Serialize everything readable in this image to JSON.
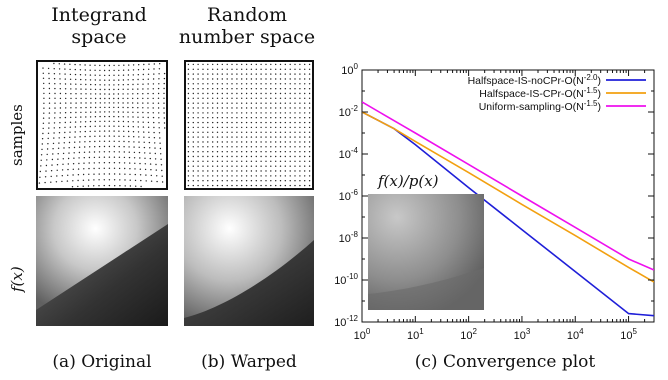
{
  "columns": {
    "integrand_title": [
      "Integrand",
      "space"
    ],
    "random_title": [
      "Random",
      "number space"
    ]
  },
  "row_labels": {
    "samples": "samples",
    "fx": "f(x)"
  },
  "captions": {
    "a": "(a) Original",
    "b": "(b) Warped",
    "c": "(c) Convergence plot"
  },
  "inset_label": "f(x)/p(x)",
  "colors": {
    "halfspace_nocpr": "#1f1fd8",
    "halfspace_cpr": "#f2a010",
    "uniform": "#ee10ee"
  },
  "chart_data": {
    "type": "line",
    "x_scale": "log",
    "y_scale": "log",
    "xlim": [
      1,
      300000
    ],
    "ylim": [
      1e-12,
      1
    ],
    "x_ticks": [
      1,
      10,
      100,
      1000,
      10000,
      100000
    ],
    "x_tick_labels": [
      "10^0",
      "10^1",
      "10^2",
      "10^3",
      "10^4",
      "10^5"
    ],
    "y_ticks": [
      1,
      0.01,
      0.0001,
      1e-06,
      1e-08,
      1e-10,
      1e-12
    ],
    "y_tick_labels": [
      "10^0",
      "10^-2",
      "10^-4",
      "10^-6",
      "10^-8",
      "10^-10",
      "10^-12"
    ],
    "legend_position": "top-right",
    "series": [
      {
        "name": "Halfspace-IS-noCPr-O(N^-2.0)",
        "color": "#1f1fd8",
        "x": [
          1,
          4,
          10,
          100,
          1000,
          10000,
          100000,
          300000
        ],
        "y": [
          0.01,
          0.0016,
          0.00028,
          2.5e-06,
          2.5e-08,
          2.5e-10,
          2.5e-12,
          2e-12
        ]
      },
      {
        "name": "Halfspace-IS-CPr-O(N^-1.5)",
        "color": "#f2a010",
        "x": [
          1,
          4,
          10,
          100,
          1000,
          10000,
          100000,
          300000
        ],
        "y": [
          0.01,
          0.0016,
          0.0004,
          1.3e-05,
          4e-07,
          1.3e-08,
          4e-10,
          8e-11
        ]
      },
      {
        "name": "Uniform-sampling-O(N^-1.5)",
        "color": "#ee10ee",
        "x": [
          1,
          10,
          100,
          1000,
          10000,
          100000,
          300000
        ],
        "y": [
          0.03,
          0.001,
          3.2e-05,
          1e-06,
          3.2e-08,
          1e-09,
          3e-10
        ]
      }
    ]
  }
}
